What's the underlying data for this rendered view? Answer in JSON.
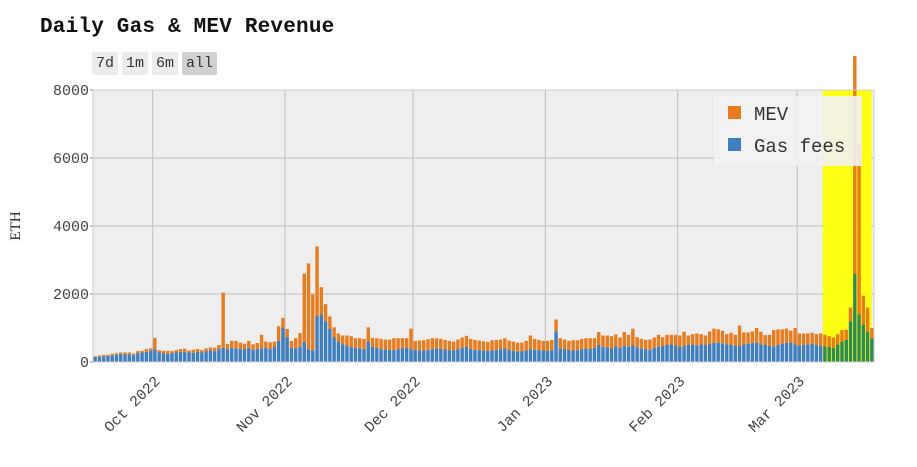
{
  "chart_data": {
    "type": "bar",
    "stacked": true,
    "title": "Daily Gas & MEV Revenue",
    "ylabel": "ETH",
    "xlabel": "",
    "ylim": [
      0,
      8000
    ],
    "yticks": [
      "8000",
      "6000",
      "4000",
      "2000",
      "0"
    ],
    "ytick_values": [
      8000,
      6000,
      4000,
      2000,
      0
    ],
    "xticks": [
      {
        "label": "Oct 2022",
        "day": 14
      },
      {
        "label": "Nov 2022",
        "day": 45
      },
      {
        "label": "Dec 2022",
        "day": 75
      },
      {
        "label": "Jan 2023",
        "day": 106
      },
      {
        "label": "Feb 2023",
        "day": 137
      },
      {
        "label": "Mar 2023",
        "day": 165
      }
    ],
    "start_date": "2022-09-17",
    "highlight": {
      "from_day": 171,
      "to_day": 182,
      "color": "#ffff00"
    },
    "legend": [
      {
        "name": "MEV",
        "color": "#e87b1e"
      },
      {
        "name": "Gas fees",
        "color": "#3f7fbf"
      }
    ],
    "series": [
      {
        "name": "Gas fees",
        "color": "#3f7fbf",
        "values": [
          150,
          160,
          170,
          180,
          200,
          210,
          240,
          220,
          230,
          210,
          260,
          280,
          300,
          330,
          380,
          290,
          250,
          240,
          260,
          280,
          300,
          290,
          280,
          270,
          300,
          280,
          320,
          340,
          320,
          380,
          420,
          380,
          420,
          400,
          390,
          380,
          420,
          360,
          380,
          400,
          420,
          380,
          440,
          620,
          1000,
          720,
          420,
          400,
          450,
          600,
          380,
          340,
          1350,
          1400,
          1200,
          980,
          720,
          600,
          520,
          480,
          440,
          420,
          400,
          380,
          600,
          450,
          420,
          380,
          370,
          360,
          350,
          380,
          400,
          420,
          380,
          360,
          350,
          340,
          360,
          380,
          400,
          390,
          370,
          350,
          340,
          380,
          420,
          450,
          380,
          360,
          350,
          340,
          330,
          340,
          360,
          380,
          400,
          350,
          330,
          310,
          320,
          340,
          380,
          360,
          350,
          340,
          330,
          350,
          900,
          400,
          380,
          360,
          340,
          350,
          380,
          400,
          380,
          420,
          500,
          450,
          430,
          400,
          460,
          420,
          480,
          450,
          500,
          430,
          400,
          380,
          360,
          420,
          450,
          470,
          500,
          520,
          480,
          450,
          470,
          500,
          520,
          480,
          520,
          500,
          540,
          560,
          580,
          550,
          520,
          500,
          480,
          470,
          520,
          540,
          560,
          580,
          520,
          500,
          480,
          460,
          500,
          540,
          560,
          580,
          520,
          480,
          500,
          520,
          540,
          500,
          480,
          460,
          440,
          420,
          520,
          600,
          650,
          1200,
          2600,
          1400,
          1100,
          900,
          700
        ]
      },
      {
        "name": "MEV",
        "color": "#e87b1e",
        "values": [
          20,
          30,
          40,
          30,
          40,
          50,
          40,
          60,
          50,
          40,
          60,
          50,
          80,
          70,
          330,
          60,
          80,
          90,
          60,
          70,
          80,
          100,
          60,
          90,
          80,
          70,
          80,
          90,
          100,
          120,
          1620,
          150,
          200,
          220,
          180,
          160,
          200,
          160,
          180,
          400,
          180,
          200,
          160,
          430,
          300,
          250,
          200,
          300,
          400,
          2000,
          2520,
          1650,
          2050,
          800,
          500,
          360,
          300,
          240,
          260,
          300,
          320,
          280,
          300,
          300,
          420,
          260,
          280,
          300,
          290,
          300,
          350,
          320,
          300,
          280,
          600,
          260,
          280,
          300,
          310,
          320,
          300,
          290,
          280,
          270,
          260,
          280,
          300,
          320,
          300,
          290,
          280,
          270,
          260,
          300,
          290,
          280,
          300,
          280,
          270,
          260,
          250,
          280,
          400,
          320,
          300,
          280,
          290,
          300,
          350,
          300,
          280,
          260,
          300,
          290,
          300,
          300,
          320,
          280,
          380,
          330,
          350,
          360,
          350,
          300,
          400,
          350,
          480,
          300,
          280,
          270,
          300,
          300,
          350,
          260,
          300,
          280,
          320,
          330,
          420,
          280,
          300,
          360,
          300,
          280,
          360,
          420,
          380,
          370,
          300,
          360,
          320,
          600,
          350,
          330,
          340,
          420,
          370,
          290,
          320,
          480,
          460,
          420,
          420,
          340,
          480,
          360,
          340,
          320,
          320,
          320,
          360,
          340,
          320,
          300,
          300,
          340,
          300,
          400,
          6400,
          5000,
          850,
          700,
          300
        ]
      }
    ]
  }
}
